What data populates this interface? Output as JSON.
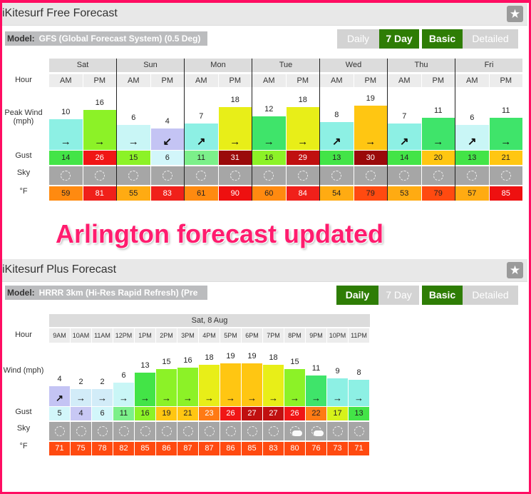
{
  "free": {
    "title": "iKitesurf Free Forecast",
    "model_label": "Model:",
    "model_value": "GFS (Global Forecast System) (0.5 Deg)",
    "buttons": {
      "daily": "Daily",
      "seven_day": "7 Day",
      "basic": "Basic",
      "detailed": "Detailed"
    },
    "row_labels": {
      "hour": "Hour",
      "wind": "Peak Wind (mph)",
      "gust": "Gust",
      "sky": "Sky",
      "temp": "°F"
    },
    "days": [
      "Sat",
      "Sun",
      "Mon",
      "Tue",
      "Wed",
      "Thu",
      "Fri"
    ],
    "periods": [
      "AM",
      "PM"
    ],
    "wind": [
      10,
      16,
      6,
      4,
      7,
      18,
      12,
      18,
      8,
      19,
      7,
      11,
      6,
      11
    ],
    "wind_dir": [
      "→",
      "→",
      "→",
      "↙",
      "↗",
      "→",
      "→",
      "→",
      "↗",
      "→",
      "↗",
      "→",
      "↗",
      "→"
    ],
    "gust": [
      14,
      26,
      15,
      6,
      11,
      31,
      16,
      29,
      13,
      30,
      14,
      20,
      13,
      21
    ],
    "temp": [
      59,
      81,
      55,
      83,
      61,
      90,
      60,
      84,
      54,
      79,
      53,
      79,
      57,
      85
    ],
    "sky": [
      "sun-icon",
      "sun-icon",
      "sun-icon",
      "sun-icon",
      "sun-icon",
      "sun-icon",
      "sun-icon",
      "sun-icon",
      "sun-icon",
      "sun-icon",
      "sun-icon",
      "sun-icon",
      "sun-icon",
      "sun-icon"
    ]
  },
  "overlay_text": "Arlington forecast updated",
  "plus": {
    "title": "iKitesurf Plus Forecast",
    "model_label": "Model:",
    "model_value": "HRRR 3km (Hi-Res Rapid Refresh) (Pre",
    "buttons": {
      "daily": "Daily",
      "seven_day": "7 Day",
      "basic": "Basic",
      "detailed": "Detailed"
    },
    "row_labels": {
      "hour": "Hour",
      "wind": "Wind (mph)",
      "gust": "Gust",
      "sky": "Sky",
      "temp": "°F"
    },
    "date": "Sat, 8 Aug",
    "hours": [
      "9AM",
      "10AM",
      "11AM",
      "12PM",
      "1PM",
      "2PM",
      "3PM",
      "4PM",
      "5PM",
      "6PM",
      "7PM",
      "8PM",
      "9PM",
      "10PM",
      "11PM"
    ],
    "wind": [
      4,
      2,
      2,
      6,
      13,
      15,
      16,
      18,
      19,
      19,
      18,
      15,
      11,
      9,
      8
    ],
    "wind_dir": [
      "↗",
      "→",
      "→",
      "→",
      "→",
      "→",
      "→",
      "→",
      "→",
      "→",
      "→",
      "→",
      "→",
      "→",
      "→"
    ],
    "gust": [
      5,
      4,
      6,
      11,
      16,
      19,
      21,
      23,
      26,
      27,
      27,
      26,
      22,
      17,
      13
    ],
    "temp": [
      71,
      75,
      78,
      82,
      85,
      86,
      87,
      87,
      86,
      85,
      83,
      80,
      76,
      73,
      71
    ],
    "sky": [
      "sun-icon",
      "sun-icon",
      "sun-icon",
      "sun-icon",
      "sun-icon",
      "sun-icon",
      "sun-icon",
      "sun-icon",
      "sun-icon",
      "sun-icon",
      "sun-icon",
      "partly-cloudy-icon",
      "partly-cloudy-icon",
      "sun-icon",
      "sun-icon"
    ]
  },
  "colors": {
    "accent_border": "#ff0d62",
    "active_button": "#2e7d05",
    "overlay_text": "#ff1c6e"
  }
}
